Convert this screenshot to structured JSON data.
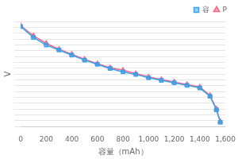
{
  "chart_data": {
    "type": "line",
    "xlabel": "容量（mAh）",
    "ylabel": "V",
    "x": [
      0,
      100,
      200,
      300,
      400,
      500,
      600,
      700,
      800,
      900,
      1000,
      1100,
      1200,
      1300,
      1400,
      1480,
      1530,
      1560
    ],
    "series": [
      {
        "name": "容",
        "marker": "square",
        "values": [
          4.19,
          4.06,
          3.97,
          3.91,
          3.85,
          3.79,
          3.74,
          3.69,
          3.65,
          3.62,
          3.58,
          3.55,
          3.52,
          3.49,
          3.46,
          3.36,
          3.2,
          3.05
        ]
      },
      {
        "name": "P",
        "marker": "triangle",
        "values": [
          4.2,
          4.08,
          3.99,
          3.92,
          3.86,
          3.8,
          3.75,
          3.7,
          3.67,
          3.63,
          3.59,
          3.56,
          3.53,
          3.5,
          3.47,
          3.37,
          3.21,
          3.06
        ]
      }
    ],
    "xlim": [
      0,
      1600
    ],
    "xticks": [
      0,
      200,
      400,
      600,
      800,
      1000,
      1200,
      1400,
      1600
    ],
    "ylim": [
      3.0,
      4.25
    ],
    "yticks": [
      3.0,
      3.069444444444444,
      3.138888888888889,
      3.208333333333333,
      3.277777777777778,
      3.347222222222222,
      3.416666666666667,
      3.486111111111111,
      3.555555555555556,
      3.625,
      3.694444444444444,
      3.763888888888889,
      3.833333333333333,
      3.902777777777778,
      3.972222222222222,
      4.041666666666667,
      4.111111111111111,
      4.180555555555556,
      4.25
    ],
    "grid": "y",
    "legend": "upper right",
    "tick_labels": "x"
  }
}
